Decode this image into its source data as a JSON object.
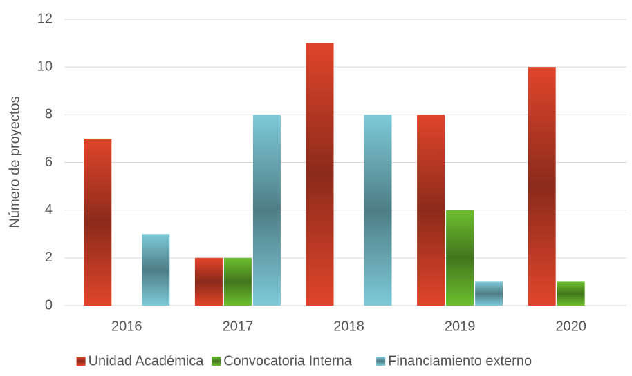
{
  "chart_data": {
    "type": "bar",
    "y_axis_label": "Número de proyectos",
    "categories": [
      "2016",
      "2017",
      "2018",
      "2019",
      "2020"
    ],
    "series": [
      {
        "name": "Unidad Académica",
        "color": "#e0452b",
        "values": [
          7,
          2,
          11,
          8,
          10
        ]
      },
      {
        "name": "Convocatoria Interna",
        "color": "#6cbf2e",
        "values": [
          0,
          2,
          0,
          4,
          1
        ]
      },
      {
        "name": "Financiamiento externo",
        "color": "#7ecad8",
        "values": [
          3,
          8,
          8,
          1,
          0
        ]
      }
    ],
    "ylim": [
      0,
      12
    ],
    "yticks": [
      0,
      2,
      4,
      6,
      8,
      10,
      12
    ],
    "grid": true,
    "legend": "bottom"
  }
}
